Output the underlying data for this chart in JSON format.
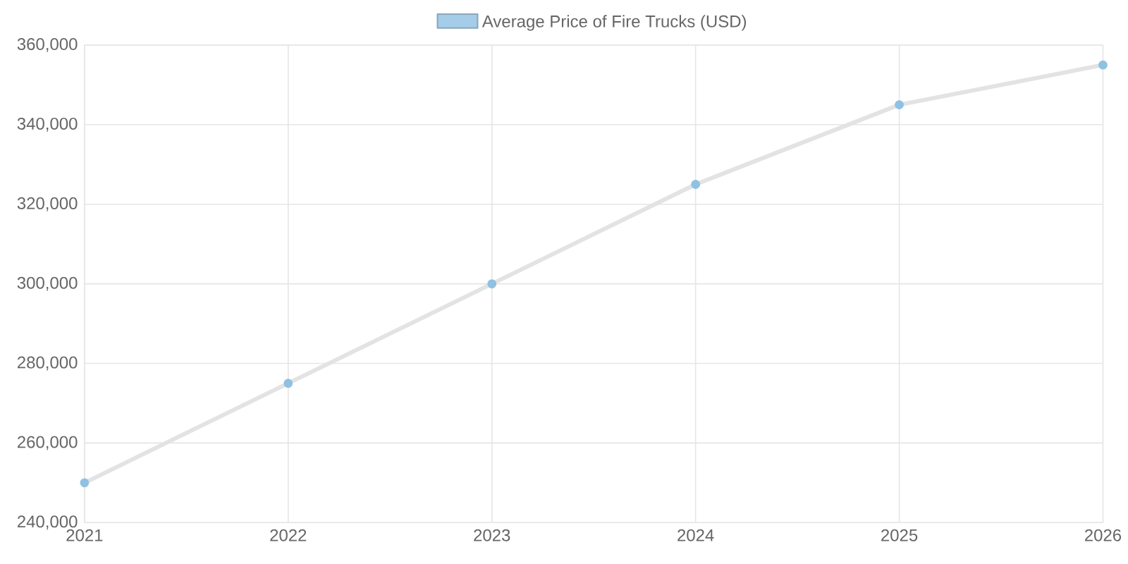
{
  "chart_data": {
    "type": "line",
    "x": [
      2021,
      2022,
      2023,
      2024,
      2025,
      2026
    ],
    "series": [
      {
        "name": "Average Price of Fire Trucks (USD)",
        "color": "#8fc1e3",
        "values": [
          250000,
          275000,
          300000,
          325000,
          345000,
          355000
        ]
      }
    ],
    "xlim": [
      2021,
      2026
    ],
    "xticks": [
      2021,
      2022,
      2023,
      2024,
      2025,
      2026
    ],
    "ylim": [
      240000,
      360000
    ],
    "yticks": [
      {
        "value": 240000,
        "label": "240,000"
      },
      {
        "value": 260000,
        "label": "260,000"
      },
      {
        "value": 280000,
        "label": "280,000"
      },
      {
        "value": 300000,
        "label": "300,000"
      },
      {
        "value": 320000,
        "label": "320,000"
      },
      {
        "value": 340000,
        "label": "340,000"
      },
      {
        "value": 360000,
        "label": "360,000"
      }
    ],
    "grid": true,
    "legend": "top",
    "marker": "circle",
    "line_style": "solid"
  }
}
